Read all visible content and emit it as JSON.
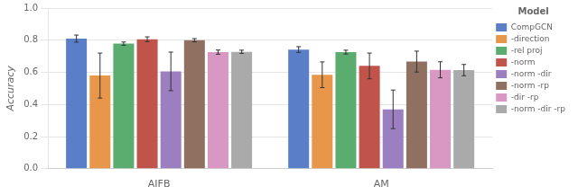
{
  "chart_data": {
    "type": "bar",
    "categories": [
      "AIFB",
      "AM"
    ],
    "series": [
      {
        "name": "CompGCN",
        "color": "#5b7ec9",
        "values": [
          0.81,
          0.742
        ],
        "errors": [
          0.022,
          0.018
        ]
      },
      {
        "name": "-direction",
        "color": "#e8974a",
        "values": [
          0.58,
          0.585
        ],
        "errors": [
          0.14,
          0.08
        ]
      },
      {
        "name": "-rel proj",
        "color": "#5aad6e",
        "values": [
          0.779,
          0.726
        ],
        "errors": [
          0.01,
          0.012
        ]
      },
      {
        "name": "-norm",
        "color": "#c0544a",
        "values": [
          0.806,
          0.64
        ],
        "errors": [
          0.015,
          0.08
        ]
      },
      {
        "name": "-norm -dir",
        "color": "#9b7fc0",
        "values": [
          0.606,
          0.37
        ],
        "errors": [
          0.12,
          0.12
        ]
      },
      {
        "name": "-norm -rp",
        "color": "#907060",
        "values": [
          0.8,
          0.667
        ],
        "errors": [
          0.01,
          0.065
        ]
      },
      {
        "name": "-dir -rp",
        "color": "#d998c4",
        "values": [
          0.726,
          0.616
        ],
        "errors": [
          0.013,
          0.05
        ]
      },
      {
        "name": "-norm -dir -rp",
        "color": "#aaaaaa",
        "values": [
          0.728,
          0.614
        ],
        "errors": [
          0.01,
          0.035
        ]
      }
    ],
    "ylabel": "Accuracy",
    "legend_title": "Model",
    "ylim": [
      0.0,
      1.0
    ],
    "yticks": [
      {
        "value": 0,
        "label": "0.0"
      },
      0.2,
      0.4,
      0.6,
      0.8,
      {
        "value": 1,
        "label": "1.0"
      }
    ],
    "grid": true,
    "legend": "upper right"
  }
}
